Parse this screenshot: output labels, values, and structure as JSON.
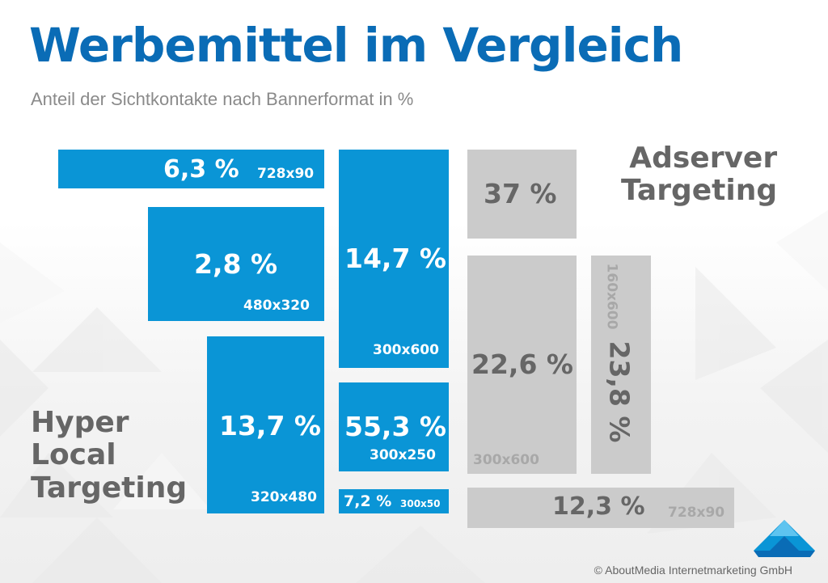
{
  "title": "Werbemittel im Vergleich",
  "subtitle": "Anteil der Sichtkontakte nach Bannerformat in %",
  "groups": {
    "hyper_local": [
      "Hyper",
      "Local",
      "Targeting"
    ],
    "adserver": [
      "Adserver",
      "Targeting"
    ]
  },
  "footer": "© AboutMedia Internetmarketing GmbH",
  "colors": {
    "title": "#0a6cb6",
    "hyper_local": "#0a95d6",
    "adserver": "#cbcbcb",
    "label_gray": "#666666"
  },
  "icons": {
    "logo": "company-logo-icon"
  },
  "chart_data": {
    "type": "table",
    "unit": "%",
    "series": [
      {
        "name": "Hyper Local Targeting",
        "items": [
          {
            "format": "728x90",
            "label": "6,3 %",
            "value": 6.3
          },
          {
            "format": "480x320",
            "label": "2,8 %",
            "value": 2.8
          },
          {
            "format": "320x480",
            "label": "13,7 %",
            "value": 13.7
          },
          {
            "format": "300x600",
            "label": "14,7 %",
            "value": 14.7
          },
          {
            "format": "300x250",
            "label": "55,3 %",
            "value": 55.3
          },
          {
            "format": "300x50",
            "label": "7,2 %",
            "value": 7.2
          }
        ]
      },
      {
        "name": "Adserver Targeting",
        "items": [
          {
            "format": "",
            "label": "37 %",
            "value": 37
          },
          {
            "format": "300x600",
            "label": "22,6 %",
            "value": 22.6
          },
          {
            "format": "160x600",
            "label": "23,8 %",
            "value": 23.8
          },
          {
            "format": "728x90",
            "label": "12,3 %",
            "value": 12.3
          }
        ]
      }
    ]
  }
}
